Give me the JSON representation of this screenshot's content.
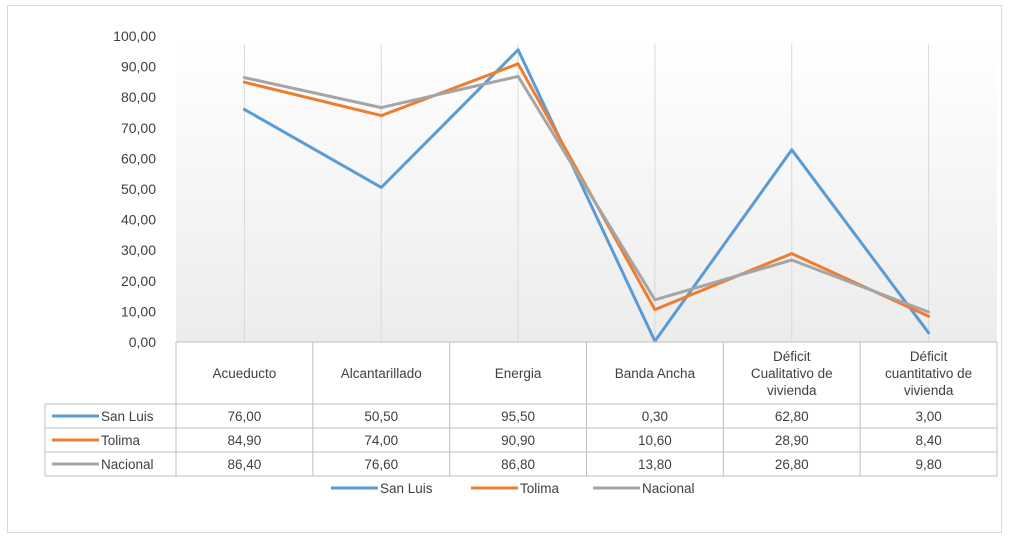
{
  "chart_data": {
    "type": "line",
    "title": "",
    "xlabel": "",
    "ylabel": "",
    "ylim": [
      0,
      100
    ],
    "y_ticks": [
      "0,00",
      "10,00",
      "20,00",
      "30,00",
      "40,00",
      "50,00",
      "60,00",
      "70,00",
      "80,00",
      "90,00",
      "100,00"
    ],
    "categories": [
      [
        "Acueducto"
      ],
      [
        "Alcantarillado"
      ],
      [
        "Energia"
      ],
      [
        "Banda Ancha"
      ],
      [
        "Déficit",
        "Cualitativo de",
        "vivienda"
      ],
      [
        "Déficit",
        "cuantitativo de",
        "vivienda"
      ]
    ],
    "series": [
      {
        "name": "San Luis",
        "color": "#5b9bd5",
        "values": [
          76.0,
          50.5,
          95.5,
          0.3,
          62.8,
          3.0
        ],
        "labels": [
          "76,00",
          "50,50",
          "95,50",
          "0,30",
          "62,80",
          "3,00"
        ]
      },
      {
        "name": "Tolima",
        "color": "#ed7d31",
        "values": [
          84.9,
          74.0,
          90.9,
          10.6,
          28.9,
          8.4
        ],
        "labels": [
          "84,90",
          "74,00",
          "90,90",
          "10,60",
          "28,90",
          "8,40"
        ]
      },
      {
        "name": "Nacional",
        "color": "#a5a5a5",
        "values": [
          86.4,
          76.6,
          86.8,
          13.8,
          26.8,
          9.8
        ],
        "labels": [
          "86,40",
          "76,60",
          "86,80",
          "13,80",
          "26,80",
          "9,80"
        ]
      }
    ],
    "data_table": true,
    "grid": false,
    "legend": "bottom"
  }
}
